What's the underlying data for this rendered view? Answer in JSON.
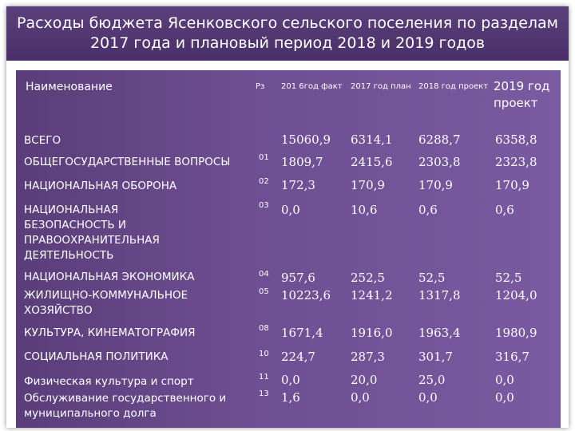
{
  "title": {
    "line1": "Расходы бюджета Ясенковского сельского поселения по разделам",
    "line2": "2017 года и плановый период 2018 и 2019 годов"
  },
  "table": {
    "headers": [
      "Наименование",
      "Рз",
      "201 6год факт",
      "2017 год план",
      "2018 год проект",
      "2019 год проект"
    ],
    "rows": [
      {
        "name": "ВСЕГО",
        "code": "",
        "values": [
          "15060,9",
          "6314,1",
          "6288,7",
          "6358,8"
        ]
      },
      {
        "name": "ОБЩЕГОСУДАРСТВЕННЫЕ ВОПРОСЫ",
        "code": "01",
        "values": [
          "1809,7",
          "2415,6",
          "2303,8",
          "2323,8"
        ]
      },
      {
        "name": "НАЦИОНАЛЬНАЯ ОБОРОНА",
        "code": "02",
        "values": [
          "172,3",
          "170,9",
          "170,9",
          "170,9"
        ]
      },
      {
        "name": "НАЦИОНАЛЬНАЯ БЕЗОПАСНОСТЬ И ПРАВООХРАНИТЕЛЬНАЯ ДЕЯТЕЛЬНОСТЬ",
        "code": "03",
        "values": [
          "0,0",
          "10,6",
          "0,6",
          "0,6"
        ]
      },
      {
        "name": "НАЦИОНАЛЬНАЯ ЭКОНОМИКА",
        "code": "04",
        "values": [
          "957,6",
          "252,5",
          "52,5",
          "52,5"
        ]
      },
      {
        "name": "ЖИЛИЩНО-КОММУНАЛЬНОЕ ХОЗЯЙСТВО",
        "code": "05",
        "values": [
          "10223,6",
          "1241,2",
          "1317,8",
          "1204,0"
        ]
      },
      {
        "name": "КУЛЬТУРА, КИНЕМАТОГРАФИЯ",
        "code": "08",
        "values": [
          "1671,4",
          "1916,0",
          "1963,4",
          "1980,9"
        ]
      },
      {
        "name": "СОЦИАЛЬНАЯ ПОЛИТИКА",
        "code": "10",
        "values": [
          "224,7",
          "287,3",
          "301,7",
          "316,7"
        ]
      },
      {
        "name": "Физическая культура и спорт",
        "code": "11",
        "values": [
          "0,0",
          "20,0",
          "25,0",
          "0,0"
        ]
      },
      {
        "name": "Обслуживание государственного и муниципального долга",
        "code": "13",
        "values": [
          "1,6",
          "0,0",
          "0,0",
          "0,0"
        ]
      }
    ]
  }
}
